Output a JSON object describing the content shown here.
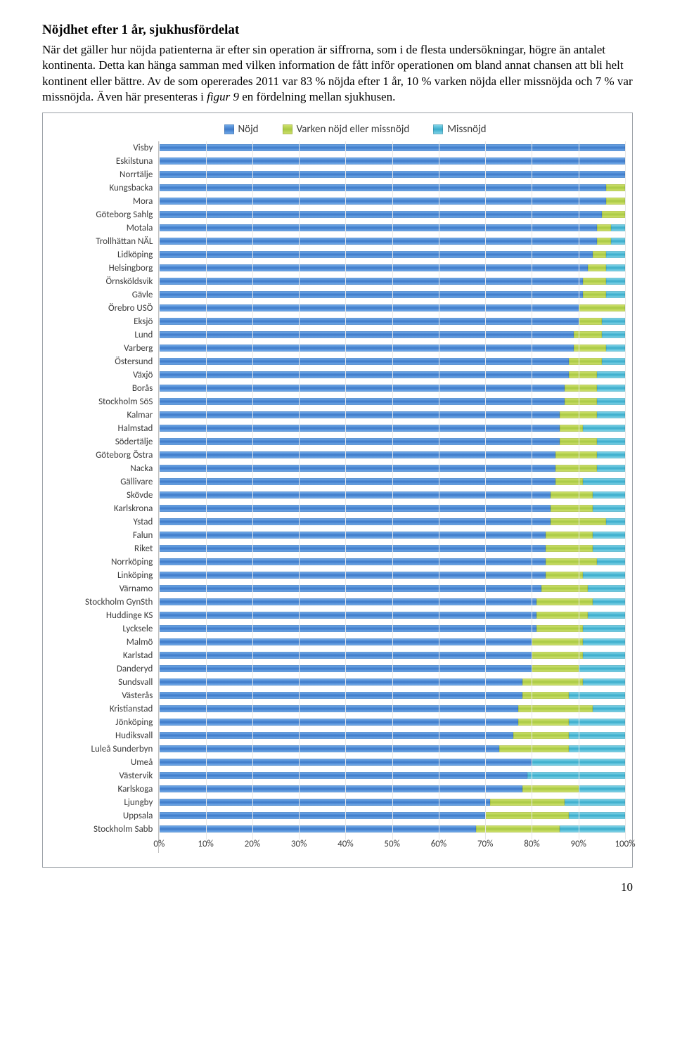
{
  "title": "Nöjdhet efter 1 år, sjukhusfördelat",
  "paragraph_parts": {
    "p1": "När det gäller hur nöjda patienterna är efter sin operation är siffrorna, som i de flesta undersökningar, högre än antalet kontinenta. Detta kan hänga samman med vilken information de fått inför operationen om bland annat chansen att bli helt kontinent eller bättre. Av de som opererades 2011 var 83 % nöjda efter 1 år, 10 % varken nöjda eller missnöjda och 7 % var missnöjda. Även här presenteras i ",
    "p2_italic": "figur 9",
    "p3": " en fördelning mellan sjukhusen."
  },
  "chart": {
    "type": "stacked-bar-horizontal",
    "legend": [
      {
        "label": "Nöjd",
        "color": "#4e86d1",
        "cls": "bar-nojd"
      },
      {
        "label": "Varken nöjd eller missnöjd",
        "color": "#b7d25a",
        "cls": "bar-varken"
      },
      {
        "label": "Missnöjd",
        "color": "#4db9d4",
        "cls": "bar-miss"
      }
    ],
    "x_ticks": [
      0,
      10,
      20,
      30,
      40,
      50,
      60,
      70,
      80,
      90,
      100
    ],
    "x_suffix": "%",
    "grid_color": "#e6e6e6",
    "axis_color": "#bfbfbf",
    "background_color": "#ffffff",
    "label_fontsize": 13,
    "rows": [
      {
        "label": "Visby",
        "v": [
          100,
          0,
          0
        ]
      },
      {
        "label": "Eskilstuna",
        "v": [
          100,
          0,
          0
        ]
      },
      {
        "label": "Norrtälje",
        "v": [
          100,
          0,
          0
        ]
      },
      {
        "label": "Kungsbacka",
        "v": [
          96,
          4,
          0
        ]
      },
      {
        "label": "Mora",
        "v": [
          96,
          4,
          0
        ]
      },
      {
        "label": "Göteborg Sahlg",
        "v": [
          95,
          5,
          0
        ]
      },
      {
        "label": "Motala",
        "v": [
          94,
          3,
          3
        ]
      },
      {
        "label": "Trollhättan NÄL",
        "v": [
          94,
          3,
          3
        ]
      },
      {
        "label": "Lidköping",
        "v": [
          93,
          3,
          4
        ]
      },
      {
        "label": "Helsingborg",
        "v": [
          92,
          4,
          4
        ]
      },
      {
        "label": "Örnsköldsvik",
        "v": [
          91,
          5,
          4
        ]
      },
      {
        "label": "Gävle",
        "v": [
          91,
          5,
          4
        ]
      },
      {
        "label": "Örebro USÖ",
        "v": [
          90,
          10,
          0
        ]
      },
      {
        "label": "Eksjö",
        "v": [
          90,
          5,
          5
        ]
      },
      {
        "label": "Lund",
        "v": [
          89,
          6,
          5
        ]
      },
      {
        "label": "Varberg",
        "v": [
          89,
          7,
          4
        ]
      },
      {
        "label": "Östersund",
        "v": [
          88,
          7,
          5
        ]
      },
      {
        "label": "Växjö",
        "v": [
          88,
          6,
          6
        ]
      },
      {
        "label": "Borås",
        "v": [
          87,
          7,
          6
        ]
      },
      {
        "label": "Stockholm SöS",
        "v": [
          87,
          7,
          6
        ]
      },
      {
        "label": "Kalmar",
        "v": [
          86,
          8,
          6
        ]
      },
      {
        "label": "Halmstad",
        "v": [
          86,
          5,
          9
        ]
      },
      {
        "label": "Södertälje",
        "v": [
          86,
          8,
          6
        ]
      },
      {
        "label": "Göteborg Östra",
        "v": [
          85,
          9,
          6
        ]
      },
      {
        "label": "Nacka",
        "v": [
          85,
          9,
          6
        ]
      },
      {
        "label": "Gällivare",
        "v": [
          85,
          6,
          9
        ]
      },
      {
        "label": "Skövde",
        "v": [
          84,
          9,
          7
        ]
      },
      {
        "label": "Karlskrona",
        "v": [
          84,
          9,
          7
        ]
      },
      {
        "label": "Ystad",
        "v": [
          84,
          12,
          4
        ]
      },
      {
        "label": "Falun",
        "v": [
          83,
          10,
          7
        ]
      },
      {
        "label": "Riket",
        "v": [
          83,
          10,
          7
        ]
      },
      {
        "label": "Norrköping",
        "v": [
          83,
          11,
          6
        ]
      },
      {
        "label": "Linköping",
        "v": [
          83,
          8,
          9
        ]
      },
      {
        "label": "Värnamo",
        "v": [
          82,
          10,
          8
        ]
      },
      {
        "label": "Stockholm GynSth",
        "v": [
          81,
          12,
          7
        ]
      },
      {
        "label": "Huddinge KS",
        "v": [
          81,
          11,
          8
        ]
      },
      {
        "label": "Lycksele",
        "v": [
          81,
          10,
          9
        ]
      },
      {
        "label": "Malmö",
        "v": [
          80,
          11,
          9
        ]
      },
      {
        "label": "Karlstad",
        "v": [
          80,
          11,
          9
        ]
      },
      {
        "label": "Danderyd",
        "v": [
          80,
          10,
          10
        ]
      },
      {
        "label": "Sundsvall",
        "v": [
          78,
          13,
          9
        ]
      },
      {
        "label": "Västerås",
        "v": [
          78,
          10,
          12
        ]
      },
      {
        "label": "Kristianstad",
        "v": [
          77,
          16,
          7
        ]
      },
      {
        "label": "Jönköping",
        "v": [
          77,
          11,
          12
        ]
      },
      {
        "label": "Hudiksvall",
        "v": [
          76,
          12,
          12
        ]
      },
      {
        "label": "Luleå Sunderbyn",
        "v": [
          73,
          15,
          12
        ]
      },
      {
        "label": "Umeå",
        "v": [
          80,
          0,
          20
        ]
      },
      {
        "label": "Västervik",
        "v": [
          79,
          0,
          21
        ]
      },
      {
        "label": "Karlskoga",
        "v": [
          78,
          12,
          10
        ]
      },
      {
        "label": "Ljungby",
        "v": [
          71,
          16,
          13
        ]
      },
      {
        "label": "Uppsala",
        "v": [
          70,
          18,
          12
        ]
      },
      {
        "label": "Stockholm Sabb",
        "v": [
          68,
          18,
          14
        ]
      }
    ]
  },
  "page_number": "10"
}
